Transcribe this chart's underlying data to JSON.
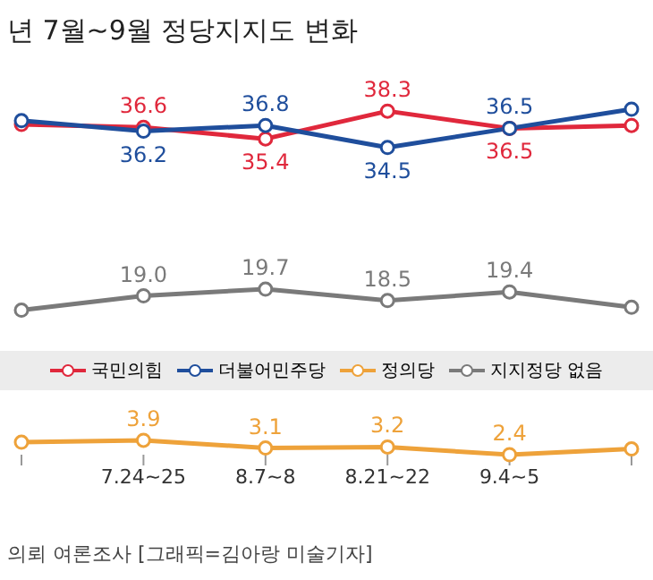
{
  "chart_data": {
    "type": "line",
    "title": "년 7월~9월 정당지지도 변화",
    "categories": [
      null,
      "7.24~25",
      "8.7~8",
      "8.21~22",
      "9.4~5",
      null
    ],
    "series": [
      {
        "name": "국민의힘",
        "color": "#e0283c",
        "values": [
          36.9,
          36.6,
          35.4,
          38.3,
          36.5,
          36.8
        ],
        "value_labels": [
          null,
          "36.6",
          "35.4",
          "38.3",
          "36.5",
          null
        ]
      },
      {
        "name": "더불어민주당",
        "color": "#1f4e9c",
        "values": [
          37.3,
          36.2,
          36.8,
          34.5,
          36.5,
          38.5
        ],
        "value_labels": [
          null,
          "36.2",
          "36.8",
          "34.5",
          "36.5",
          null
        ]
      },
      {
        "name": "정의당",
        "color": "#eea23a",
        "values": [
          3.7,
          3.9,
          3.1,
          3.2,
          2.4,
          3.0
        ],
        "value_labels": [
          null,
          "3.9",
          "3.1",
          "3.2",
          "2.4",
          null
        ]
      },
      {
        "name": "지지정당 없음",
        "color": "#7a7a7a",
        "values": [
          17.5,
          19.0,
          19.7,
          18.5,
          19.4,
          17.8
        ],
        "value_labels": [
          null,
          "19.0",
          "19.7",
          "18.5",
          "19.4",
          null
        ]
      }
    ],
    "tick_labels": "x",
    "legend": "bottom",
    "marker": "circle",
    "line_style": "solid",
    "annotations": [
      "의뢰 여론조사 [그래픽=김아랑 미술기자]"
    ]
  }
}
